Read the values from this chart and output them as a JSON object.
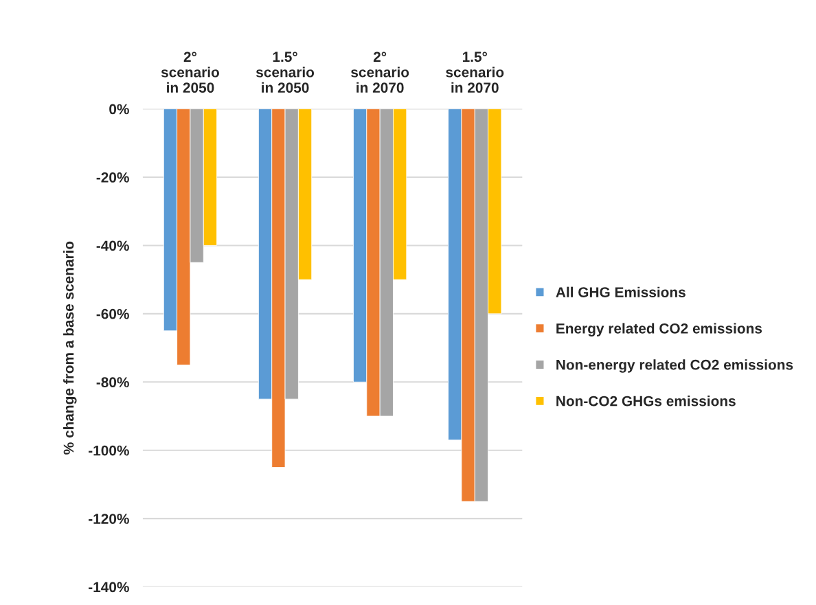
{
  "chart_data": {
    "type": "bar",
    "categories": [
      "2°\nscenario\nin 2050",
      "1.5°\nscenario\nin 2050",
      "2°\nscenario\nin 2070",
      "1.5°\nscenario\nin 2070"
    ],
    "ylabel": "% change from a base scenario",
    "series": [
      {
        "name": "All GHG Emissions",
        "color": "#5b9bd5",
        "values": [
          -65,
          -85,
          -80,
          -97
        ]
      },
      {
        "name": "Energy related CO2 emissions",
        "color": "#ed7d31",
        "values": [
          -75,
          -105,
          -90,
          -115
        ]
      },
      {
        "name": "Non-energy related CO2 emissions",
        "color": "#a5a5a5",
        "values": [
          -45,
          -85,
          -90,
          -115
        ]
      },
      {
        "name": "Non-CO2 GHGs emissions",
        "color": "#ffc000",
        "values": [
          -40,
          -50,
          -50,
          -60
        ]
      }
    ],
    "ylim": [
      -140,
      0
    ],
    "yticks": [
      {
        "value": -140,
        "label": "-140%"
      },
      {
        "value": -120,
        "label": "-120%"
      },
      {
        "value": -100,
        "label": "-100%"
      },
      {
        "value": -80,
        "label": "-80%"
      },
      {
        "value": -60,
        "label": "-60%"
      },
      {
        "value": -40,
        "label": "-40%"
      },
      {
        "value": -20,
        "label": "-20%"
      },
      {
        "value": 0,
        "label": "0%"
      }
    ],
    "grid": "y",
    "legend": "right"
  }
}
